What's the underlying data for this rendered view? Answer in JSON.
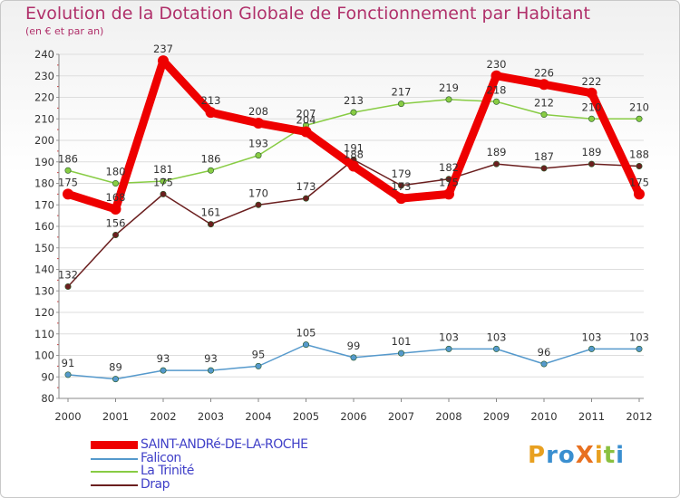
{
  "title": "Evolution de la Dotation Globale de Fonctionnement par Habitant",
  "subtitle": "(en € et par an)",
  "logo": "ProXiti",
  "colors": {
    "title": "#b0306a",
    "legend_text": "#4040c8"
  },
  "chart_data": {
    "type": "line",
    "title": "Evolution de la Dotation Globale de Fonctionnement par Habitant",
    "subtitle": "(en € et par an)",
    "x": [
      "2000",
      "2001",
      "2002",
      "2003",
      "2004",
      "2005",
      "2006",
      "2007",
      "2008",
      "2009",
      "2010",
      "2011",
      "2012"
    ],
    "ylim": [
      80,
      240
    ],
    "yticks": [
      80,
      90,
      100,
      110,
      120,
      130,
      140,
      150,
      160,
      170,
      180,
      190,
      200,
      210,
      220,
      230,
      240
    ],
    "grid": "horizontal",
    "legend_position": "bottom-left",
    "series": [
      {
        "name": "SAINT-ANDRé-DE-LA-ROCHE",
        "color": "#ee0000",
        "thick": true,
        "values": [
          175,
          168,
          237,
          213,
          208,
          204,
          188,
          173,
          175,
          230,
          226,
          222,
          175
        ],
        "labels": [
          "175",
          "168",
          "237",
          "213",
          "208",
          "204",
          "188",
          "173",
          "175",
          "230",
          "226",
          "222",
          "175"
        ]
      },
      {
        "name": "Falicon",
        "color": "#5599cc",
        "thick": false,
        "values": [
          91,
          89,
          93,
          93,
          95,
          105,
          99,
          101,
          103,
          103,
          96,
          103,
          103
        ],
        "labels": [
          "91",
          "89",
          "93",
          "93",
          "95",
          "105",
          "99",
          "101",
          "103",
          "103",
          "96",
          "103",
          "103"
        ]
      },
      {
        "name": "La Trinité",
        "color": "#88cc44",
        "thick": false,
        "values": [
          186,
          180,
          181,
          186,
          193,
          207,
          213,
          217,
          219,
          218,
          212,
          210,
          210
        ],
        "labels": [
          "186",
          "180",
          "181",
          "186",
          "193",
          "207",
          "213",
          "217",
          "219",
          "218",
          "212",
          "210",
          "210"
        ]
      },
      {
        "name": "Drap",
        "color": "#6b1f1f",
        "thick": false,
        "values": [
          132,
          156,
          175,
          161,
          170,
          173,
          191,
          179,
          182,
          189,
          187,
          189,
          188
        ],
        "labels": [
          "132",
          "156",
          "175",
          "161",
          "170",
          "173",
          "191",
          "179",
          "182",
          "189",
          "187",
          "189",
          "188"
        ]
      }
    ]
  }
}
